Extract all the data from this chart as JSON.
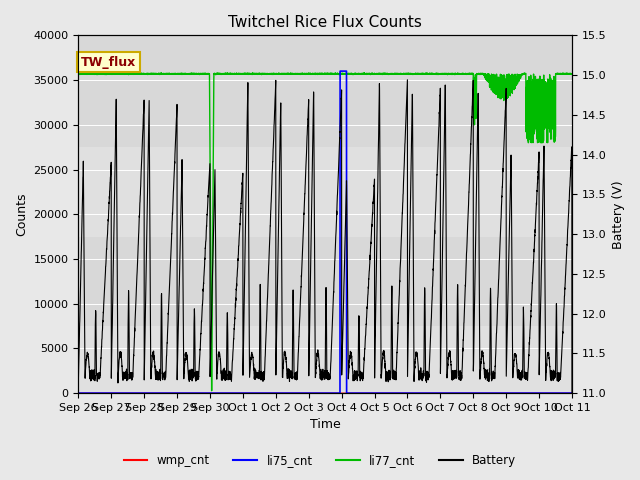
{
  "title": "Twitchel Rice Flux Counts",
  "xlabel": "Time",
  "ylabel_left": "Counts",
  "ylabel_right": "Battery (V)",
  "ylim_left": [
    0,
    40000
  ],
  "ylim_right": [
    11.0,
    15.5
  ],
  "yticks_left": [
    0,
    5000,
    10000,
    15000,
    20000,
    25000,
    30000,
    35000,
    40000
  ],
  "yticks_right": [
    11.0,
    11.5,
    12.0,
    12.5,
    13.0,
    13.5,
    14.0,
    14.5,
    15.0,
    15.5
  ],
  "bg_color": "#e8e8e8",
  "plot_bg_color_top": "#d8d8d8",
  "plot_bg_color_bot": "#e8e8e8",
  "title_fontsize": 11,
  "axis_label_fontsize": 9,
  "tick_label_fontsize": 8,
  "annotation_text": "TW_flux",
  "annotation_color": "#8B0000",
  "annotation_bg": "#ffffcc",
  "annotation_border": "#ccaa00",
  "wmp_cnt_color": "#ff0000",
  "li75_cnt_color": "#0000ff",
  "li77_cnt_color": "#00bb00",
  "battery_color": "#000000",
  "li77_baseline": 35700,
  "legend_labels": [
    "wmp_cnt",
    "li75_cnt",
    "li77_cnt",
    "Battery"
  ],
  "legend_colors": [
    "#ff0000",
    "#0000ff",
    "#00bb00",
    "#000000"
  ],
  "x_tick_labels": [
    "Sep 26",
    "Sep 27",
    "Sep 28",
    "Sep 29",
    "Sep 30",
    "Oct 1",
    "Oct 2",
    "Oct 3",
    "Oct 4",
    "Oct 5",
    "Oct 6",
    "Oct 7",
    "Oct 8",
    "Oct 9",
    "Oct 10",
    "Oct 11"
  ]
}
